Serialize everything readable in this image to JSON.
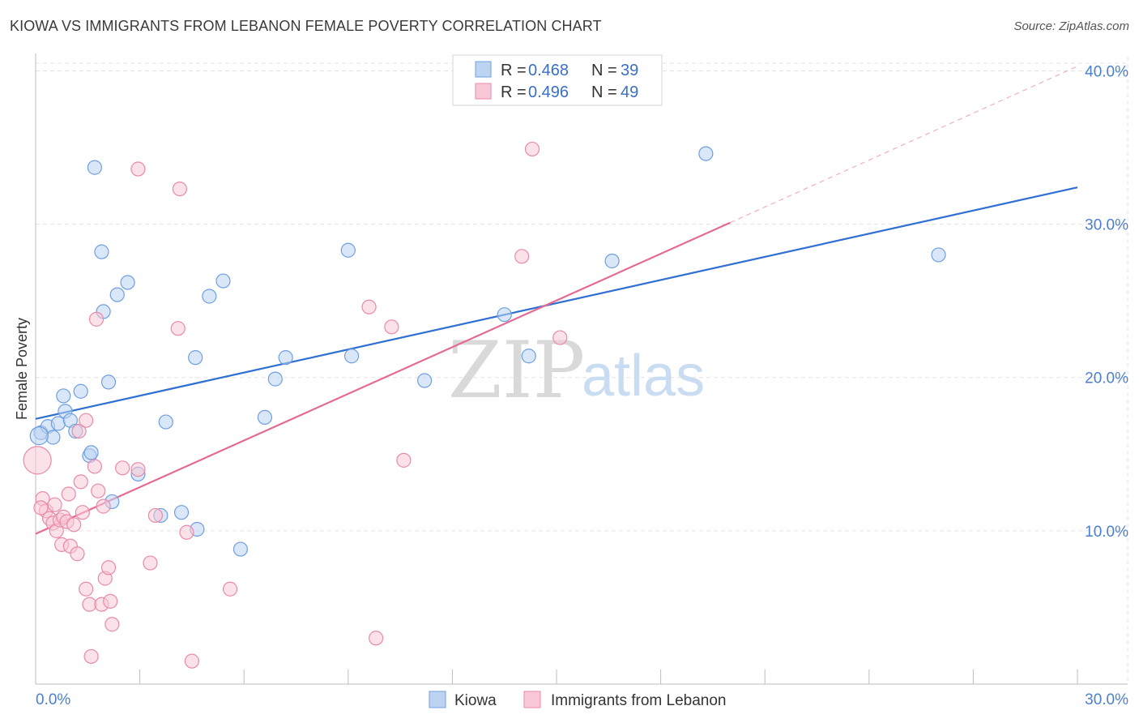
{
  "title": "KIOWA VS IMMIGRANTS FROM LEBANON FEMALE POVERTY CORRELATION CHART",
  "source": "Source: ZipAtlas.com",
  "watermark": {
    "zip": "ZIP",
    "atlas": "atlas"
  },
  "colors": {
    "kiowa_fill": "#bcd4f2",
    "kiowa_stroke": "#6f9fe0",
    "kiowa_line": "#2f6fd0",
    "lebanon_fill": "#f8c8d6",
    "lebanon_stroke": "#e98aa8",
    "lebanon_line": "#e56a93",
    "grid": "#e3e3e3",
    "tick_label": "#4a7fd0"
  },
  "legend": {
    "rows": [
      {
        "r_label": "R =",
        "r_value": "0.468",
        "n_label": "N =",
        "n_value": "39"
      },
      {
        "r_label": "R =",
        "r_value": "0.496",
        "n_label": "N =",
        "n_value": "49"
      }
    ]
  },
  "chart_data": {
    "type": "scatter",
    "title": "KIOWA VS IMMIGRANTS FROM LEBANON FEMALE POVERTY CORRELATION CHART",
    "xlabel": "",
    "ylabel": "Female Poverty",
    "xlim": [
      0,
      30
    ],
    "ylim": [
      0,
      40.5
    ],
    "x_ticks": [
      0,
      3,
      6,
      9,
      12,
      15,
      18,
      21,
      24,
      27,
      30
    ],
    "x_tick_labels": {
      "0": "0.0%",
      "30": "30.0%"
    },
    "y_ticks": [
      10,
      20,
      30,
      40
    ],
    "y_tick_labels": [
      "10.0%",
      "20.0%",
      "30.0%",
      "40.0%"
    ],
    "grid": true,
    "legend_position": "top-center",
    "series": [
      {
        "name": "Kiowa",
        "r": 0.468,
        "n": 39,
        "trend": {
          "x0": 0,
          "y0": 17.3,
          "x1": 30,
          "y1": 32.4
        },
        "points": [
          [
            0.15,
            16.4
          ],
          [
            0.35,
            16.8
          ],
          [
            0.5,
            16.1
          ],
          [
            0.65,
            17.0
          ],
          [
            0.8,
            18.8
          ],
          [
            0.85,
            17.8
          ],
          [
            1.0,
            17.2
          ],
          [
            1.15,
            16.5
          ],
          [
            1.3,
            19.1
          ],
          [
            1.55,
            14.9
          ],
          [
            1.6,
            15.1
          ],
          [
            1.7,
            33.7
          ],
          [
            1.9,
            28.2
          ],
          [
            1.95,
            24.3
          ],
          [
            2.1,
            19.7
          ],
          [
            2.2,
            11.9
          ],
          [
            2.35,
            25.4
          ],
          [
            2.65,
            26.2
          ],
          [
            2.95,
            13.7
          ],
          [
            3.6,
            11.0
          ],
          [
            3.75,
            17.1
          ],
          [
            4.2,
            11.2
          ],
          [
            4.6,
            21.3
          ],
          [
            4.65,
            10.1
          ],
          [
            5.0,
            25.3
          ],
          [
            5.4,
            26.3
          ],
          [
            5.9,
            8.8
          ],
          [
            6.6,
            17.4
          ],
          [
            6.9,
            19.9
          ],
          [
            7.2,
            21.3
          ],
          [
            9.0,
            28.3
          ],
          [
            9.1,
            21.4
          ],
          [
            11.2,
            19.8
          ],
          [
            13.5,
            24.1
          ],
          [
            14.2,
            21.4
          ],
          [
            16.6,
            27.6
          ],
          [
            19.3,
            34.6
          ],
          [
            26.0,
            28.0
          ],
          [
            0.1,
            16.2
          ]
        ]
      },
      {
        "name": "Immigrants from Lebanon",
        "r": 0.496,
        "n": 49,
        "trend": {
          "x0": 0,
          "y0": 9.8,
          "x1": 20.0,
          "y1": 30.1
        },
        "trend_dashed": {
          "x0": 20.0,
          "y0": 30.1,
          "x1": 30,
          "y1": 40.3
        },
        "points": [
          [
            0.05,
            14.6
          ],
          [
            0.2,
            12.1
          ],
          [
            0.3,
            11.3
          ],
          [
            0.4,
            10.8
          ],
          [
            0.5,
            10.5
          ],
          [
            0.55,
            11.7
          ],
          [
            0.6,
            10.0
          ],
          [
            0.7,
            10.7
          ],
          [
            0.75,
            9.1
          ],
          [
            0.8,
            10.9
          ],
          [
            0.9,
            10.6
          ],
          [
            0.95,
            12.4
          ],
          [
            1.0,
            9.0
          ],
          [
            1.1,
            10.4
          ],
          [
            1.2,
            8.5
          ],
          [
            1.25,
            16.5
          ],
          [
            1.35,
            11.2
          ],
          [
            1.3,
            13.2
          ],
          [
            1.45,
            17.2
          ],
          [
            1.45,
            6.2
          ],
          [
            1.55,
            5.2
          ],
          [
            1.6,
            1.8
          ],
          [
            1.7,
            14.2
          ],
          [
            1.75,
            23.8
          ],
          [
            1.8,
            12.6
          ],
          [
            1.9,
            5.2
          ],
          [
            1.95,
            11.6
          ],
          [
            2.0,
            6.9
          ],
          [
            2.1,
            7.6
          ],
          [
            2.15,
            5.4
          ],
          [
            2.2,
            3.9
          ],
          [
            2.5,
            14.1
          ],
          [
            2.95,
            14.0
          ],
          [
            2.95,
            33.6
          ],
          [
            3.3,
            7.9
          ],
          [
            3.45,
            11.0
          ],
          [
            4.1,
            23.2
          ],
          [
            4.15,
            32.3
          ],
          [
            4.35,
            9.9
          ],
          [
            4.5,
            1.5
          ],
          [
            5.6,
            6.2
          ],
          [
            9.6,
            24.6
          ],
          [
            9.8,
            3.0
          ],
          [
            10.25,
            23.3
          ],
          [
            10.6,
            14.6
          ],
          [
            14.0,
            27.9
          ],
          [
            14.3,
            34.9
          ],
          [
            15.1,
            22.6
          ],
          [
            0.15,
            11.5
          ]
        ]
      }
    ]
  },
  "bottom_legend": [
    "Kiowa",
    "Immigrants from Lebanon"
  ]
}
